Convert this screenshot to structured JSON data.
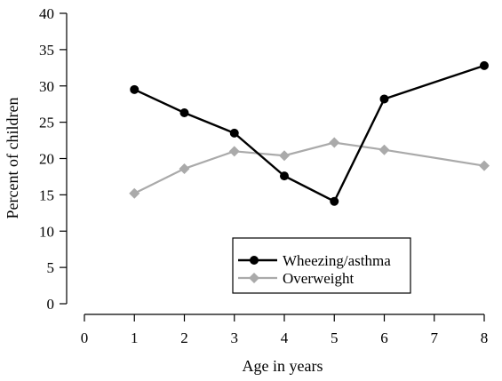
{
  "chart_data": {
    "type": "line",
    "xlabel": "Age in years",
    "ylabel": "Percent of children",
    "xlim": [
      0,
      8
    ],
    "ylim": [
      0,
      40
    ],
    "x_ticks": [
      "0",
      "1",
      "2",
      "3",
      "4",
      "5",
      "6",
      "7",
      "8"
    ],
    "y_ticks": [
      "0",
      "5",
      "10",
      "15",
      "20",
      "25",
      "30",
      "35",
      "40"
    ],
    "grid": false,
    "legend_position": "bottom-right",
    "series": [
      {
        "name": "Wheezing/asthma",
        "color": "#000000",
        "marker": "circle",
        "x": [
          1,
          2,
          3,
          4,
          5,
          6,
          8
        ],
        "values": [
          29.5,
          26.3,
          23.5,
          17.6,
          14.1,
          28.2,
          32.8
        ]
      },
      {
        "name": "Overweight",
        "color": "#aaaaaa",
        "marker": "diamond",
        "x": [
          1,
          2,
          3,
          4,
          5,
          6,
          8
        ],
        "values": [
          15.2,
          18.6,
          21.0,
          20.4,
          22.2,
          21.2,
          19.0
        ]
      }
    ]
  }
}
